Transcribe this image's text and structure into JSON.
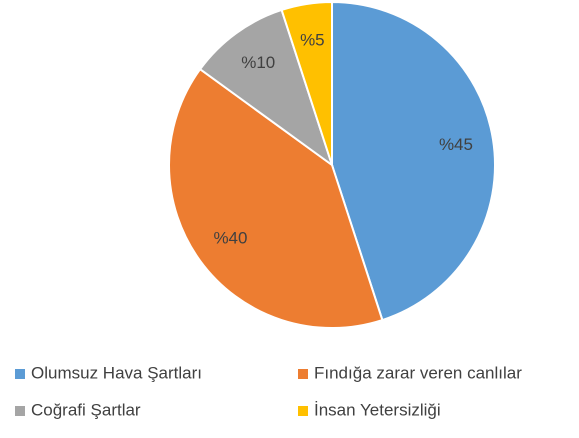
{
  "chart_data": {
    "type": "pie",
    "categories": [
      "Olumsuz Hava Şartları",
      "Fındığa zarar veren canlılar",
      "Coğrafi Şartlar",
      "İnsan Yetersizliği"
    ],
    "values": [
      45,
      40,
      10,
      5
    ],
    "value_labels": [
      "%45",
      "%40",
      "%10",
      "%5"
    ],
    "colors": [
      "#5b9bd5",
      "#ed7d31",
      "#a5a5a5",
      "#ffc000"
    ],
    "legend": "bottom"
  }
}
